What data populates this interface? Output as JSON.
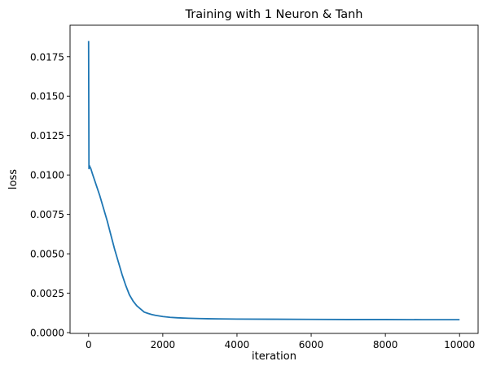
{
  "chart_data": {
    "type": "line",
    "title": "Training with 1 Neuron & Tanh",
    "xlabel": "iteration",
    "ylabel": "loss",
    "xlim": [
      -500,
      10500
    ],
    "ylim": [
      -5e-05,
      0.0195
    ],
    "grid": false,
    "xticks": [
      0,
      2000,
      4000,
      6000,
      8000,
      10000
    ],
    "xtick_labels": [
      "0",
      "2000",
      "4000",
      "6000",
      "8000",
      "10000"
    ],
    "yticks": [
      0.0,
      0.0025,
      0.005,
      0.0075,
      0.01,
      0.0125,
      0.015,
      0.0175
    ],
    "ytick_labels": [
      "0.0000",
      "0.0025",
      "0.0050",
      "0.0075",
      "0.0100",
      "0.0125",
      "0.0150",
      "0.0175"
    ],
    "series": [
      {
        "color": "#1f77b4",
        "x": [
          0,
          10,
          20,
          40,
          60,
          100,
          200,
          300,
          400,
          500,
          600,
          700,
          800,
          900,
          1000,
          1100,
          1200,
          1300,
          1400,
          1500,
          1600,
          1700,
          1800,
          2000,
          2200,
          2400,
          2700,
          3000,
          3500,
          4000,
          5000,
          6000,
          7000,
          8000,
          9000,
          10000
        ],
        "y": [
          0.0185,
          0.0104,
          0.0106,
          0.0105,
          0.0104,
          0.0101,
          0.0094,
          0.0087,
          0.0079,
          0.0071,
          0.0062,
          0.0053,
          0.0045,
          0.0037,
          0.003,
          0.0024,
          0.002,
          0.0017,
          0.0015,
          0.0013,
          0.00122,
          0.00115,
          0.0011,
          0.00102,
          0.00097,
          0.00094,
          0.00091,
          0.00089,
          0.00087,
          0.00086,
          0.00085,
          0.00084,
          0.00083,
          0.00083,
          0.00082,
          0.00082
        ]
      }
    ]
  }
}
